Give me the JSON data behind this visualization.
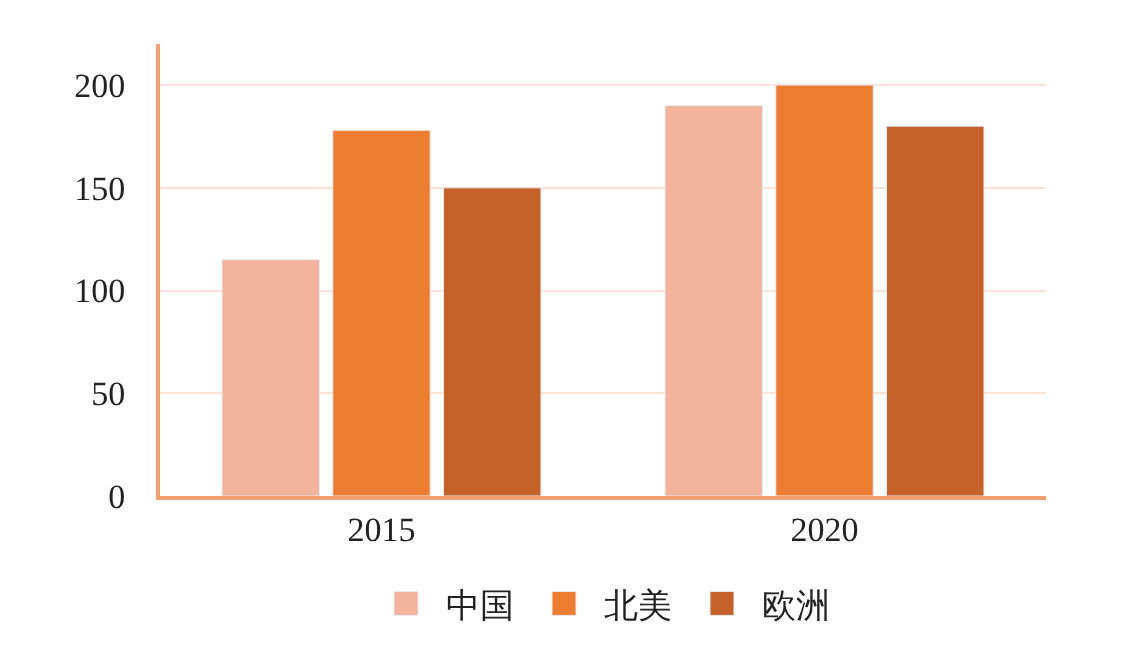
{
  "chart_data": {
    "type": "bar",
    "categories": [
      "2015",
      "2020"
    ],
    "series": [
      {
        "name": "中国",
        "color": "#f4b49c",
        "values": [
          115,
          190
        ]
      },
      {
        "name": "北美",
        "color": "#ed7d31",
        "values": [
          178,
          200
        ]
      },
      {
        "name": "欧洲",
        "color": "#c5622a",
        "values": [
          150,
          180
        ]
      }
    ],
    "ylim": [
      0,
      220
    ],
    "yticks": [
      0,
      50,
      100,
      150,
      200
    ],
    "grid": "y",
    "legend": "bottom"
  }
}
